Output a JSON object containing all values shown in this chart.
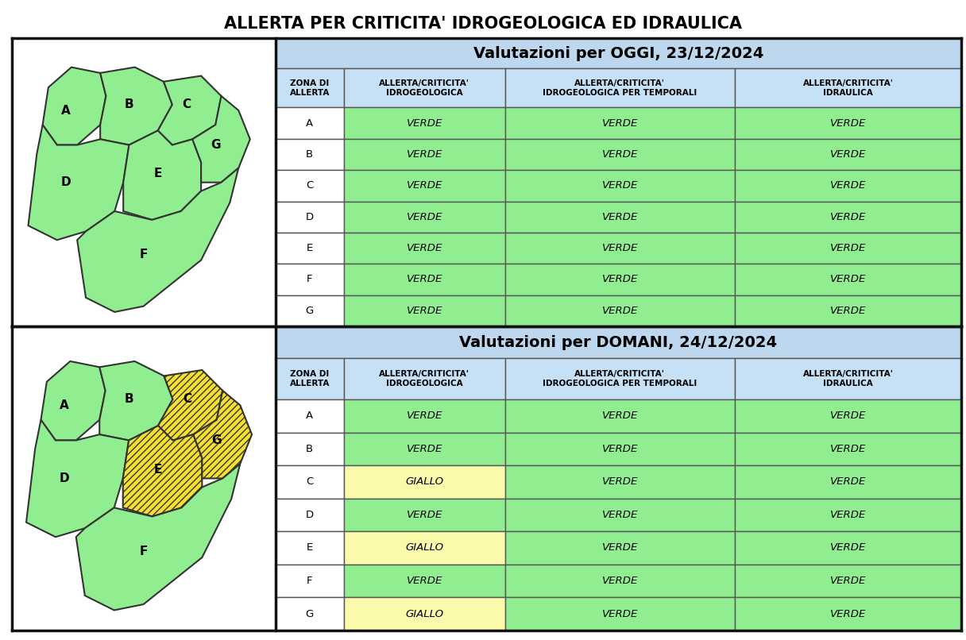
{
  "title": "ALLERTA PER CRITICITA' IDROGEOLOGICA ED IDRAULICA",
  "section1_header": "Valutazioni per OGGI, 23/12/2024",
  "section2_header": "Valutazioni per DOMANI, 24/12/2024",
  "col_headers": [
    "ZONA DI\nALLERTA",
    "ALLERTA/CRITICITA'\nIDROGEOLOGICA",
    "ALLERTA/CRITICITA'\nIDROGEOLOGICA PER TEMPORALI",
    "ALLERTA/CRITICITA'\nIDRAULICA"
  ],
  "zones": [
    "A",
    "B",
    "C",
    "D",
    "E",
    "F",
    "G"
  ],
  "oggi_data": [
    [
      "VERDE",
      "VERDE",
      "VERDE"
    ],
    [
      "VERDE",
      "VERDE",
      "VERDE"
    ],
    [
      "VERDE",
      "VERDE",
      "VERDE"
    ],
    [
      "VERDE",
      "VERDE",
      "VERDE"
    ],
    [
      "VERDE",
      "VERDE",
      "VERDE"
    ],
    [
      "VERDE",
      "VERDE",
      "VERDE"
    ],
    [
      "VERDE",
      "VERDE",
      "VERDE"
    ]
  ],
  "domani_data": [
    [
      "VERDE",
      "VERDE",
      "VERDE"
    ],
    [
      "VERDE",
      "VERDE",
      "VERDE"
    ],
    [
      "GIALLO",
      "VERDE",
      "VERDE"
    ],
    [
      "VERDE",
      "VERDE",
      "VERDE"
    ],
    [
      "GIALLO",
      "VERDE",
      "VERDE"
    ],
    [
      "VERDE",
      "VERDE",
      "VERDE"
    ],
    [
      "GIALLO",
      "VERDE",
      "VERDE"
    ]
  ],
  "color_verde": "#90EE90",
  "color_giallo": "#FAFAAA",
  "color_header_bg": "#BDD7EE",
  "color_col_header_bg": "#C6E0F5",
  "color_border": "#333333",
  "map_green": "#90EE90",
  "map_yellow": "#F5E030",
  "map_border": "#333333",
  "title_fontsize": 15,
  "header_fontsize": 14,
  "col_header_fontsize": 7.5,
  "cell_fontsize": 9.5,
  "zone_label_fontsize": 11,
  "giallo_zones_domani": [
    "C",
    "E",
    "G"
  ]
}
